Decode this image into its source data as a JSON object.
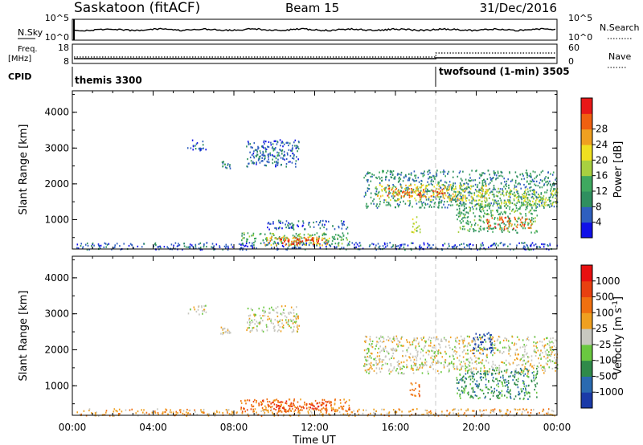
{
  "header": {
    "station": "Saskatoon (fitACF)",
    "beam": "Beam 15",
    "date": "31/Dec/2016"
  },
  "strip_panels": {
    "nsky_label": "N.Sky",
    "nsky_ticks": [
      "10^5",
      "10^0"
    ],
    "nsearch_label": "N.Search",
    "nsearch_ticks": [
      "10^5",
      "10^0"
    ],
    "freq_label": "Freq.",
    "freq_unit": "[MHz]",
    "freq_ticks": [
      "18",
      "8"
    ],
    "nave_label": "Nave",
    "nave_ticks": [
      "60",
      "0"
    ],
    "cpid_label": "CPID",
    "cpid_segments": [
      {
        "label": "themis 3300",
        "start_hour": 0
      },
      {
        "label": "twofsound (1-min) 3505",
        "start_hour": 18
      }
    ]
  },
  "chart_data": [
    {
      "type": "heatmap",
      "quantity": "Power",
      "xlabel": "",
      "ylabel": "Slant Range [km]",
      "xlim": [
        0,
        24
      ],
      "ylim": [
        180,
        4600
      ],
      "y_ticks": [
        "1000",
        "2000",
        "3000",
        "4000"
      ],
      "colorbar": {
        "label": "Power [dB]",
        "ticks": [
          "4",
          "8",
          "12",
          "16",
          "20",
          "24",
          "28"
        ],
        "colors": [
          "#1010e8",
          "#2f5fbf",
          "#2f8f5f",
          "#3fa85f",
          "#a8d040",
          "#f0e020",
          "#f0a020",
          "#f06010",
          "#e81818"
        ]
      },
      "echo_regions": [
        {
          "x0": 0.2,
          "x1": 24,
          "y0": 180,
          "y1": 380,
          "level": 1
        },
        {
          "x0": 5.6,
          "x1": 6.6,
          "y0": 2950,
          "y1": 3250,
          "level": 1
        },
        {
          "x0": 7.3,
          "x1": 7.8,
          "y0": 2450,
          "y1": 2650,
          "level": 2
        },
        {
          "x0": 8.6,
          "x1": 11.2,
          "y0": 2500,
          "y1": 3250,
          "level": 1
        },
        {
          "x0": 9.0,
          "x1": 10.5,
          "y0": 2700,
          "y1": 3000,
          "level": 2
        },
        {
          "x0": 9.5,
          "x1": 13.7,
          "y0": 750,
          "y1": 1000,
          "level": 1
        },
        {
          "x0": 8.3,
          "x1": 13.7,
          "y0": 300,
          "y1": 650,
          "level": 3
        },
        {
          "x0": 9.5,
          "x1": 12.7,
          "y0": 300,
          "y1": 550,
          "level": 6
        },
        {
          "x0": 10.2,
          "x1": 12.2,
          "y0": 320,
          "y1": 480,
          "level": 8
        },
        {
          "x0": 14.4,
          "x1": 24,
          "y0": 1350,
          "y1": 2400,
          "level": 2
        },
        {
          "x0": 15.0,
          "x1": 20.5,
          "y0": 1550,
          "y1": 2000,
          "level": 5
        },
        {
          "x0": 15.5,
          "x1": 18.5,
          "y0": 1650,
          "y1": 1900,
          "level": 7
        },
        {
          "x0": 20.0,
          "x1": 24,
          "y0": 1400,
          "y1": 1900,
          "level": 4
        },
        {
          "x0": 19.0,
          "x1": 23.0,
          "y0": 650,
          "y1": 1500,
          "level": 3
        },
        {
          "x0": 20.5,
          "x1": 22.7,
          "y0": 750,
          "y1": 1100,
          "level": 7
        },
        {
          "x0": 16.7,
          "x1": 17.2,
          "y0": 650,
          "y1": 1100,
          "level": 4
        }
      ]
    },
    {
      "type": "heatmap",
      "quantity": "Velocity",
      "xlabel": "Time UT",
      "ylabel": "Slant Range [km]",
      "xlim": [
        0,
        24
      ],
      "ylim": [
        180,
        4600
      ],
      "x_ticks": [
        "00:00",
        "04:00",
        "08:00",
        "12:00",
        "16:00",
        "20:00",
        "00:00"
      ],
      "y_ticks": [
        "1000",
        "2000",
        "3000",
        "4000"
      ],
      "colorbar": {
        "label": "Velocity [m s^-1]",
        "ticks": [
          "1000",
          "500",
          "100",
          "25",
          "-25",
          "-100",
          "-500",
          "-1000"
        ],
        "colors": [
          "#1a3aa8",
          "#2a6ab0",
          "#2f8a4a",
          "#6ac840",
          "#c8c8c0",
          "#f0a020",
          "#f07010",
          "#e84010",
          "#e81010"
        ]
      },
      "echo_regions": [
        {
          "x0": 0.2,
          "x1": 24,
          "y0": 180,
          "y1": 380,
          "level": 5
        },
        {
          "x0": 5.6,
          "x1": 6.6,
          "y0": 2950,
          "y1": 3250,
          "level": 4
        },
        {
          "x0": 7.3,
          "x1": 7.8,
          "y0": 2450,
          "y1": 2650,
          "level": 4
        },
        {
          "x0": 8.6,
          "x1": 11.2,
          "y0": 2500,
          "y1": 3250,
          "level": 4
        },
        {
          "x0": 8.3,
          "x1": 13.7,
          "y0": 300,
          "y1": 650,
          "level": 6
        },
        {
          "x0": 9.5,
          "x1": 12.7,
          "y0": 350,
          "y1": 600,
          "level": 7
        },
        {
          "x0": 14.4,
          "x1": 24,
          "y0": 1350,
          "y1": 2400,
          "level": 4
        },
        {
          "x0": 19.8,
          "x1": 20.8,
          "y0": 1900,
          "y1": 2500,
          "level": 0
        },
        {
          "x0": 19.0,
          "x1": 23.0,
          "y0": 650,
          "y1": 1500,
          "level": 2
        },
        {
          "x0": 16.7,
          "x1": 17.2,
          "y0": 650,
          "y1": 1100,
          "level": 6
        }
      ]
    }
  ]
}
